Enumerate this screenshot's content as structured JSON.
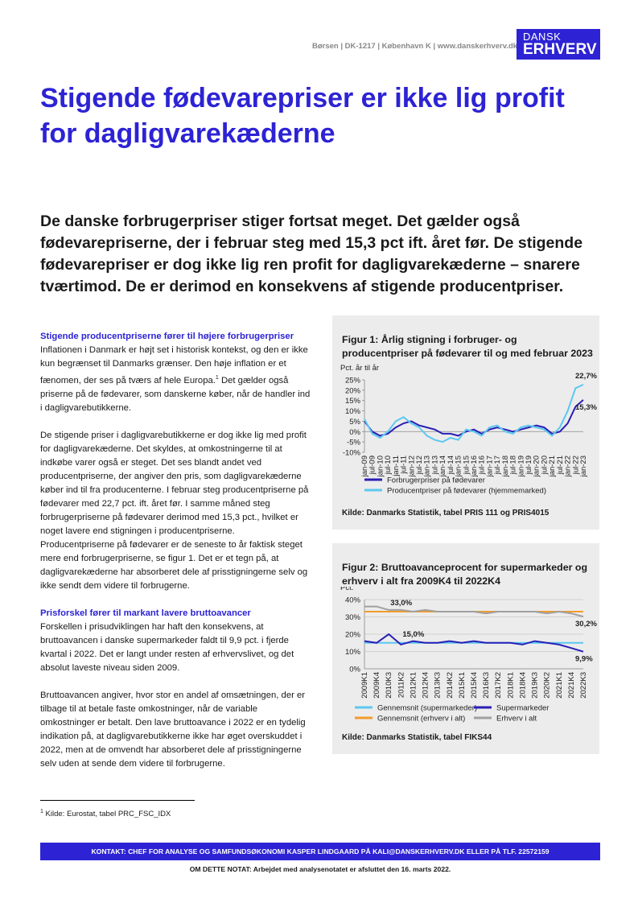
{
  "header": {
    "info": "Børsen | DK-1217 | København K | www.danskerhverv.dk",
    "logo_top": "DANSK",
    "logo_bottom": "ERHVERV"
  },
  "title": "Stigende fødevarepriser er ikke lig profit for dagligvarekæderne",
  "lead": "De danske forbrugerpriser stiger fortsat meget. Det gælder også fødevarepriserne, der i februar steg med 15,3 pct ift. året før. De stigende fødevarepriser er dog ikke lig ren profit for dagligvarekæderne – snarere tværtimod. De er derimod en konsekvens af stigende producentpriser.",
  "body": {
    "heading_1": "Stigende producentpriserne fører til højere forbrugerpriser",
    "p1_a": "Inflationen i Danmark er højt set i historisk kontekst, og den er ikke kun begrænset til Danmarks grænser. Den høje inflation er et fænomen, der ses på tværs af hele Europa.",
    "p1_ref": "1",
    "p1_b": " Det gælder også priserne på de fødevarer, som danskerne køber, når de handler ind i dagligvarebutikkerne.",
    "p2": "De stigende priser i dagligvarebutikkerne er dog ikke lig med profit for dagligvarekæderne. Det skyldes, at omkostningerne til at indkøbe varer også er steget. Det ses blandt andet ved producentpriserne, der angiver den pris, som dagligvarekæderne køber ind til fra producenterne. I februar steg producentpriserne på fødevarer med 22,7 pct. ift. året før. I samme måned steg forbrugerpriserne på fødevarer derimod med 15,3 pct., hvilket er noget lavere end stigningen i producentpriserne. Producentpriserne på fødevarer er de seneste to år faktisk steget mere end forbrugerpriserne, se figur 1. Det er et tegn på, at dagligvarekæderne har absorberet dele af prisstigningerne selv og ikke sendt dem videre til forbrugerne.",
    "heading_2": "Prisforskel fører til markant lavere bruttoavancer",
    "p3": "Forskellen i prisudviklingen har haft den konsekvens, at bruttoavancen i danske supermarkeder faldt til 9,9 pct. i fjerde kvartal i 2022. Det er langt under resten af erhvervslivet, og det absolut laveste niveau siden 2009.",
    "p4": "Bruttoavancen angiver, hvor stor en andel af omsætningen, der er tilbage til at betale faste omkostninger, når de variable omkostninger er betalt. Den lave bruttoavance i 2022 er en tydelig indikation på, at dagligvarebutikkerne ikke har øget overskuddet i 2022, men at de omvendt har absorberet dele af prisstigningerne selv uden at sende dem videre til forbrugerne."
  },
  "chart_data": [
    {
      "type": "line",
      "title": "Figur 1: Årlig stigning i forbruger- og producentpriser på fødevarer til og med februar 2023",
      "y_label": "Pct. år til år",
      "source": "Kilde: Danmarks Statistik, tabel PRIS 111 og PRIS4015",
      "categories": [
        "jan-09",
        "jul-09",
        "jan-10",
        "jul-10",
        "jan-11",
        "jul-11",
        "jan-12",
        "jul-12",
        "jan-13",
        "jul-13",
        "jan-14",
        "jul-14",
        "jan-15",
        "jul-15",
        "jan-16",
        "jul-16",
        "jan-17",
        "jul-17",
        "jan-18",
        "jul-18",
        "jan-19",
        "jul-19",
        "jan-20",
        "jul-20",
        "jan-21",
        "jul-21",
        "jan-22",
        "jul-22",
        "jan-23"
      ],
      "series": [
        {
          "name": "Forbrugerpriser på fødevarer",
          "color": "#2a1fb5",
          "values": [
            5,
            0,
            -2,
            -1,
            2,
            4,
            5,
            3,
            2,
            1,
            -1,
            -1,
            -2,
            0,
            1,
            -1,
            1,
            2,
            1,
            0,
            1,
            2,
            3,
            2,
            -1,
            0,
            4,
            12,
            15.3
          ],
          "value_labels": [
            null,
            null,
            null,
            null,
            null,
            null,
            null,
            null,
            null,
            null,
            null,
            null,
            null,
            null,
            null,
            null,
            null,
            null,
            null,
            null,
            null,
            null,
            null,
            null,
            null,
            null,
            null,
            null,
            "15,3%"
          ]
        },
        {
          "name": "Producentpriser på fødevarer (hjemmemarked)",
          "color": "#5bc8f0",
          "values": [
            6,
            -1,
            -3,
            0,
            5,
            7,
            4,
            2,
            -2,
            -4,
            -5,
            -3,
            -4,
            1,
            0,
            -2,
            2,
            3,
            0,
            -1,
            2,
            3,
            2,
            1,
            -2,
            2,
            10,
            21,
            22.7
          ],
          "value_labels": [
            null,
            null,
            null,
            null,
            null,
            null,
            null,
            null,
            null,
            null,
            null,
            null,
            null,
            null,
            null,
            null,
            null,
            null,
            null,
            null,
            null,
            null,
            null,
            null,
            null,
            null,
            null,
            null,
            "22,7%"
          ]
        }
      ],
      "ylim": [
        -10,
        25
      ],
      "yticks": [
        {
          "value": -10,
          "label": "-10%"
        },
        {
          "value": -5,
          "label": "-5%"
        },
        {
          "value": 0,
          "label": "0%"
        },
        {
          "value": 5,
          "label": "5%"
        },
        {
          "value": 10,
          "label": "10%"
        },
        {
          "value": 15,
          "label": "15%"
        },
        {
          "value": 20,
          "label": "20%"
        },
        {
          "value": 25,
          "label": "25%"
        }
      ],
      "grid": false
    },
    {
      "type": "line",
      "title": "Figur 2: Bruttoavanceprocent for supermarkeder og erhverv i alt fra 2009K4 til 2022K4",
      "y_label": "Pct.",
      "source": "Kilde: Danmarks Statistik, tabel FIKS44",
      "categories": [
        "2009K1",
        "2009K4",
        "2010K3",
        "2011K2",
        "2012K1",
        "2012K4",
        "2013K3",
        "2014K2",
        "2015K1",
        "2015K4",
        "2016K3",
        "2017K2",
        "2018K1",
        "2018K4",
        "2019K3",
        "2020K2",
        "2021K1",
        "2021K4",
        "2022K3"
      ],
      "series": [
        {
          "name": "Gennemsnit (supermarkeder)",
          "color": "#5bc8f0",
          "values": [
            15,
            15,
            15,
            15,
            15,
            15,
            15,
            15,
            15,
            15,
            15,
            15,
            15,
            15,
            15,
            15,
            15,
            15,
            15
          ],
          "value_labels": [
            null,
            null,
            null,
            "15,0%",
            null,
            null,
            null,
            null,
            null,
            null,
            null,
            null,
            null,
            null,
            null,
            null,
            null,
            null,
            null
          ]
        },
        {
          "name": "Supermarkeder",
          "color": "#2a1fb5",
          "values": [
            16,
            15,
            20,
            14,
            16,
            15,
            15,
            16,
            15,
            16,
            15,
            15,
            15,
            14,
            16,
            15,
            14,
            12,
            9.9
          ],
          "value_labels": [
            null,
            null,
            null,
            null,
            null,
            null,
            null,
            null,
            null,
            null,
            null,
            null,
            null,
            null,
            null,
            null,
            null,
            null,
            "9,9%"
          ]
        },
        {
          "name": "Gennemsnit (erhverv i alt)",
          "color": "#f39c2b",
          "values": [
            33,
            33,
            33,
            33,
            33,
            33,
            33,
            33,
            33,
            33,
            33,
            33,
            33,
            33,
            33,
            33,
            33,
            33,
            33
          ],
          "value_labels": [
            null,
            null,
            "33,0%",
            null,
            null,
            null,
            null,
            null,
            null,
            null,
            null,
            null,
            null,
            null,
            null,
            null,
            null,
            null,
            null
          ]
        },
        {
          "name": "Erhverv i alt",
          "color": "#a0a0a0",
          "values": [
            36,
            36,
            34,
            34,
            33,
            34,
            33,
            33,
            33,
            33,
            32,
            33,
            33,
            33,
            33,
            32,
            33,
            32,
            30.2
          ],
          "value_labels": [
            null,
            null,
            null,
            null,
            null,
            null,
            null,
            null,
            null,
            null,
            null,
            null,
            null,
            null,
            null,
            null,
            null,
            null,
            "30,2%"
          ]
        }
      ],
      "ylim": [
        0,
        40
      ],
      "yticks": [
        {
          "value": 0,
          "label": "0%"
        },
        {
          "value": 10,
          "label": "10%"
        },
        {
          "value": 20,
          "label": "20%"
        },
        {
          "value": 30,
          "label": "30%"
        },
        {
          "value": 40,
          "label": "40%"
        }
      ],
      "grid": true
    }
  ],
  "footnote": {
    "ref": "1",
    "text": "Kilde: Eurostat, tabel PRC_FSC_IDX"
  },
  "contact": "KONTAKT:  CHEF FOR ANALYSE OG SAMFUNDSØKONOMI KASPER LINDGAARD PÅ KALI@DANSKERHVERV.DK ELLER PÅ TLF.  22572159",
  "about": "OM DETTE NOTAT: Arbejdet med analysenotatet er afsluttet den 16. marts 2022."
}
